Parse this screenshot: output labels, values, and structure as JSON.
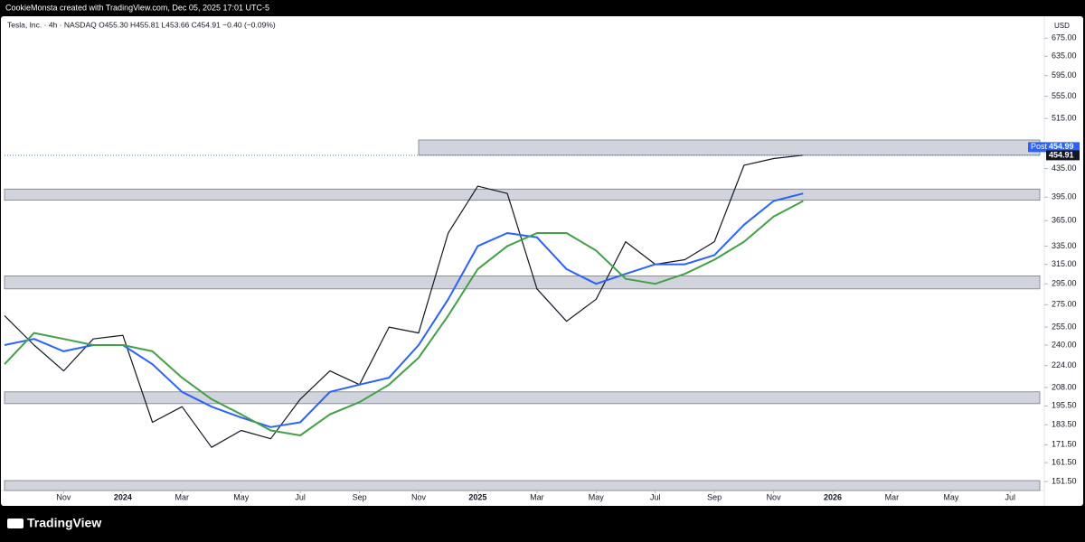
{
  "chart_data": {
    "type": "line",
    "credit": "CookieMonsta created with TradingView.com, Dec 05, 2025 17:01 UTC-5",
    "legend_text": "Tesla, Inc. · 4h · NASDAQ  O455.30  H455.81  L453.66  C454.91  −0.40 (−0.09%)",
    "currency": "USD",
    "brand": "TradingView",
    "log_scale": true,
    "grid": false,
    "x": [
      "2023-09",
      "2023-10",
      "2023-11",
      "2023-12",
      "2024-01",
      "2024-02",
      "2024-03",
      "2024-04",
      "2024-05",
      "2024-06",
      "2024-07",
      "2024-08",
      "2024-09",
      "2024-10",
      "2024-11",
      "2024-12",
      "2025-01",
      "2025-02",
      "2025-03",
      "2025-04",
      "2025-05",
      "2025-06",
      "2025-07",
      "2025-08",
      "2025-09",
      "2025-10",
      "2025-11",
      "2025-12"
    ],
    "series": [
      {
        "color": "#131722",
        "values": [
          265,
          240,
          220,
          245,
          248,
          185,
          195,
          170,
          180,
          175,
          200,
          220,
          210,
          255,
          250,
          350,
          410,
          400,
          290,
          260,
          280,
          340,
          315,
          320,
          340,
          440,
          450,
          455
        ]
      },
      {
        "color": "#2962ff",
        "values": [
          240,
          245,
          235,
          240,
          240,
          225,
          205,
          195,
          188,
          182,
          185,
          205,
          210,
          215,
          240,
          280,
          335,
          350,
          345,
          310,
          295,
          305,
          315,
          315,
          325,
          360,
          390,
          400
        ]
      },
      {
        "color": "#43a047",
        "values": [
          225,
          250,
          245,
          240,
          240,
          235,
          215,
          200,
          190,
          180,
          177,
          190,
          198,
          210,
          230,
          265,
          310,
          335,
          350,
          350,
          330,
          300,
          295,
          305,
          320,
          340,
          370,
          390
        ]
      }
    ],
    "zones": [
      {
        "low": 455,
        "high": 479,
        "start": "2024-11"
      },
      {
        "low": 391,
        "high": 406
      },
      {
        "low": 290,
        "high": 303
      },
      {
        "low": 197,
        "high": 205
      },
      {
        "low": 147,
        "high": 152
      }
    ],
    "price_tags": [
      {
        "label": "Post",
        "value": 454.99,
        "color": "#2962ff"
      },
      {
        "value": 454.91,
        "color": "#131722"
      }
    ],
    "xlim": [
      "2023-09",
      "2026-08"
    ],
    "xticks": [
      {
        "value": "2023-11",
        "label": "Nov"
      },
      {
        "value": "2024-01",
        "label": "2024"
      },
      {
        "value": "2024-03",
        "label": "Mar"
      },
      {
        "value": "2024-05",
        "label": "May"
      },
      {
        "value": "2024-07",
        "label": "Jul"
      },
      {
        "value": "2024-09",
        "label": "Sep"
      },
      {
        "value": "2024-11",
        "label": "Nov"
      },
      {
        "value": "2025-01",
        "label": "2025"
      },
      {
        "value": "2025-03",
        "label": "Mar"
      },
      {
        "value": "2025-05",
        "label": "May"
      },
      {
        "value": "2025-07",
        "label": "Jul"
      },
      {
        "value": "2025-09",
        "label": "Sep"
      },
      {
        "value": "2025-11",
        "label": "Nov"
      },
      {
        "value": "2026-01",
        "label": "2026"
      },
      {
        "value": "2026-03",
        "label": "Mar"
      },
      {
        "value": "2026-05",
        "label": "May"
      },
      {
        "value": "2026-07",
        "label": "Jul"
      }
    ],
    "ylim": [
      147,
      718
    ],
    "yticks": [
      {
        "value": 151.5,
        "label": "151.50"
      },
      {
        "value": 161.5,
        "label": "161.50"
      },
      {
        "value": 171.5,
        "label": "171.50"
      },
      {
        "value": 183.5,
        "label": "183.50"
      },
      {
        "value": 195.5,
        "label": "195.50"
      },
      {
        "value": 208,
        "label": "208.00"
      },
      {
        "value": 224,
        "label": "224.00"
      },
      {
        "value": 240,
        "label": "240.00"
      },
      {
        "value": 255,
        "label": "255.00"
      },
      {
        "value": 275,
        "label": "275.00"
      },
      {
        "value": 295,
        "label": "295.00"
      },
      {
        "value": 315,
        "label": "315.00"
      },
      {
        "value": 335,
        "label": "335.00"
      },
      {
        "value": 365,
        "label": "365.00"
      },
      {
        "value": 395,
        "label": "395.00"
      },
      {
        "value": 435,
        "label": "435.00"
      },
      {
        "value": 515,
        "label": "515.00"
      },
      {
        "value": 555,
        "label": "555.00"
      },
      {
        "value": 595,
        "label": "595.00"
      },
      {
        "value": 635,
        "label": "635.00"
      },
      {
        "value": 675,
        "label": "675.00"
      }
    ]
  }
}
